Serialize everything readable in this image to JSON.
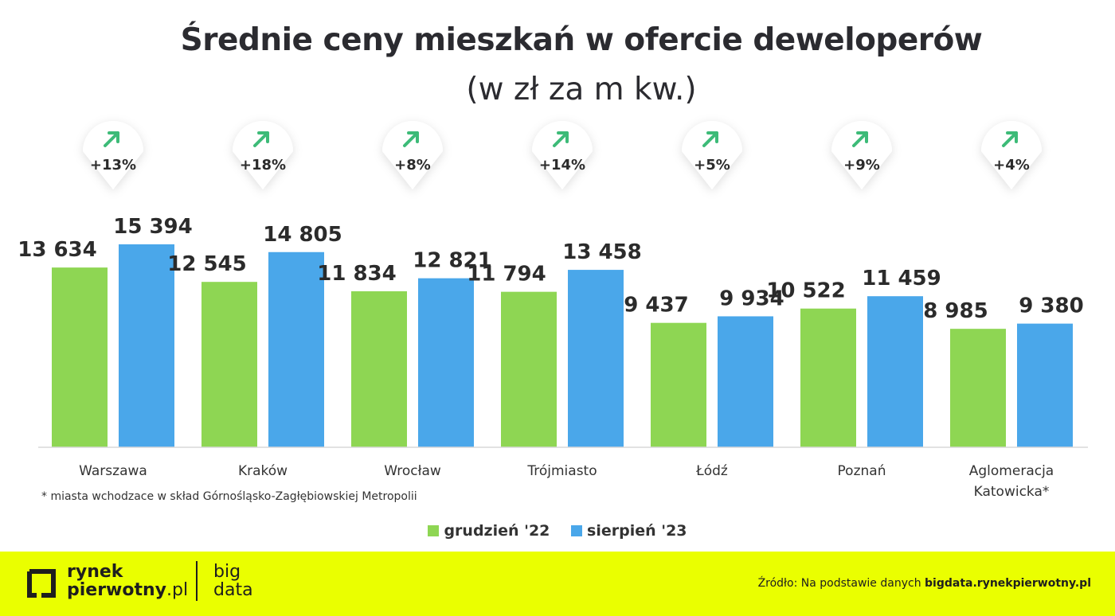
{
  "chart_data": {
    "type": "bar",
    "title": "Średnie ceny mieszkań w ofercie deweloperów",
    "subtitle": "(w zł za m kw.)",
    "categories": [
      "Warszawa",
      "Kraków",
      "Wrocław",
      "Trójmiasto",
      "Łódź",
      "Poznań",
      "Aglomeracja Katowicka*"
    ],
    "series": [
      {
        "name": "grudzień '22",
        "color": "#8ed653",
        "values": [
          13634,
          12545,
          11834,
          11794,
          9437,
          10522,
          8985
        ],
        "labels": [
          "13 634",
          "12 545",
          "11 834",
          "11 794",
          "9 437",
          "10 522",
          "8 985"
        ]
      },
      {
        "name": "sierpień '23",
        "color": "#4aa7ea",
        "values": [
          15394,
          14805,
          12821,
          13458,
          9934,
          11459,
          9380
        ],
        "labels": [
          "15 394",
          "14 805",
          "12 821",
          "13 458",
          "9 934",
          "11 459",
          "9 380"
        ]
      }
    ],
    "changes": [
      "+13%",
      "+18%",
      "+8%",
      "+14%",
      "+5%",
      "+9%",
      "+4%"
    ],
    "legend_position": "bottom",
    "grid": false
  },
  "footnote": "* miasta wchodzace w skład Górnośląsko-Zagłębiowskiej Metropolii",
  "footer": {
    "logo_line1": "rynek",
    "logo_line2_bold": "pierwotny",
    "logo_line2_light": ".pl",
    "bigdata_line1": "big",
    "bigdata_line2": "data",
    "source_prefix": "Źródło: Na podstawie danych ",
    "source_link": "bigdata.rynekpierwotny.pl"
  },
  "colors": {
    "accent_yellow": "#eaff00",
    "arrow_green": "#3dbb78"
  }
}
